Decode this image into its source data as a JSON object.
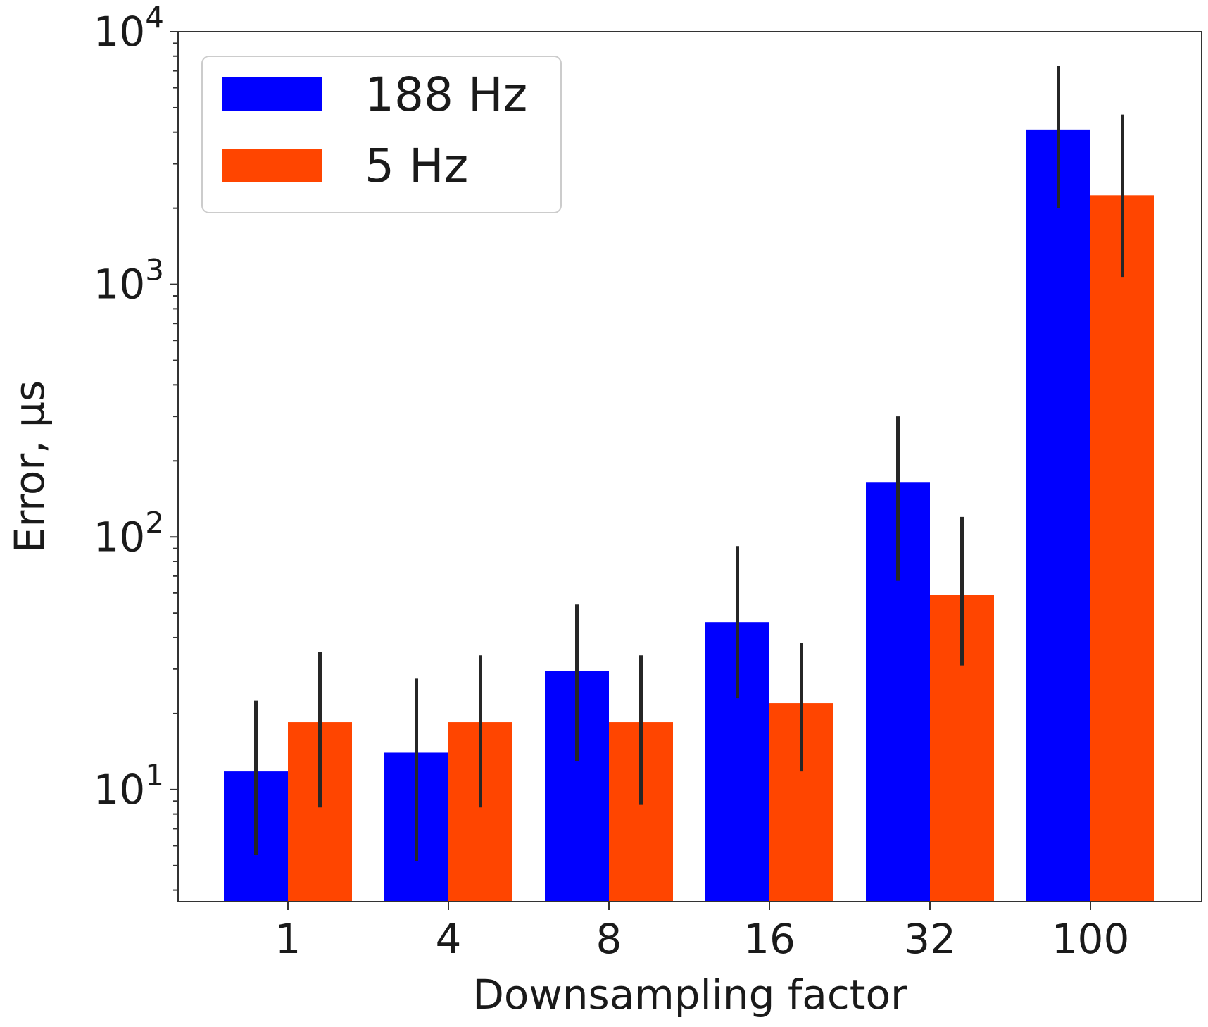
{
  "chart_data": {
    "type": "bar",
    "title": "",
    "xlabel": "Downsampling factor",
    "ylabel": "Error, μs",
    "yscale": "log",
    "ylim": [
      3.6,
      10000
    ],
    "y_ticks": [
      {
        "value": 10,
        "base": "10",
        "exp": "1"
      },
      {
        "value": 100,
        "base": "10",
        "exp": "2"
      },
      {
        "value": 1000,
        "base": "10",
        "exp": "3"
      },
      {
        "value": 10000,
        "base": "10",
        "exp": "4"
      }
    ],
    "categories": [
      "1",
      "4",
      "8",
      "16",
      "32",
      "100"
    ],
    "legend_position": "top-left",
    "grid": false,
    "series": [
      {
        "name": "188 Hz",
        "color": "#0000ff",
        "values": [
          11.8,
          14,
          29.5,
          46,
          165,
          4100
        ],
        "err_low": [
          5.5,
          5.2,
          13,
          23,
          67,
          2000
        ],
        "err_high": [
          22.5,
          27.5,
          54,
          92,
          300,
          7300
        ]
      },
      {
        "name": "5 Hz",
        "color": "#ff4500",
        "values": [
          18.5,
          18.5,
          18.5,
          22,
          59,
          2250
        ],
        "err_low": [
          8.5,
          8.5,
          8.7,
          11.8,
          31,
          1070
        ],
        "err_high": [
          35,
          34,
          34,
          38,
          120,
          4700
        ]
      }
    ]
  }
}
